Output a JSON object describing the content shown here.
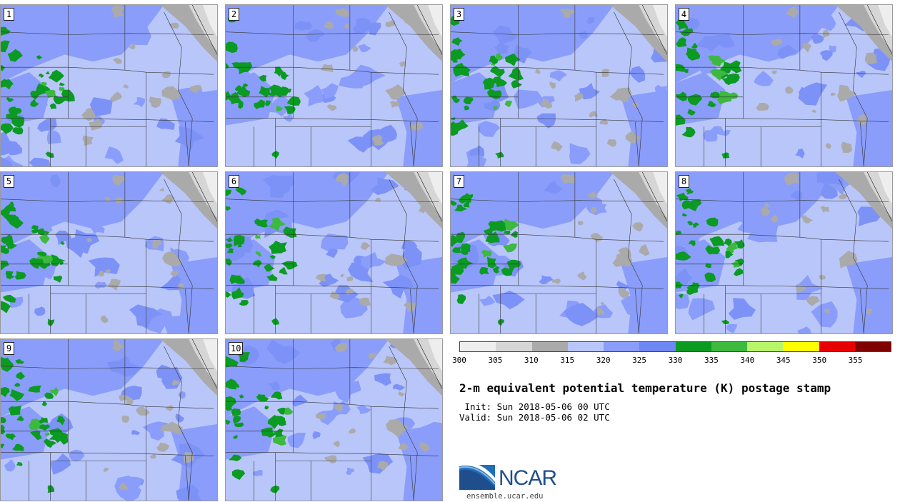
{
  "panels": [
    {
      "label": "1"
    },
    {
      "label": "2"
    },
    {
      "label": "3"
    },
    {
      "label": "4"
    },
    {
      "label": "5"
    },
    {
      "label": "6"
    },
    {
      "label": "7"
    },
    {
      "label": "8"
    },
    {
      "label": "9"
    },
    {
      "label": "10"
    }
  ],
  "legend": {
    "colors": [
      "#eeeeee",
      "#d6d6d6",
      "#aaaaaa",
      "#b9c6fa",
      "#8a9dfa",
      "#6f86f5",
      "#0b9a22",
      "#3cb93e",
      "#b7f56a",
      "#ffff00",
      "#e60000",
      "#800000"
    ],
    "ticks": [
      "300",
      "305",
      "310",
      "315",
      "320",
      "325",
      "330",
      "335",
      "340",
      "345",
      "350",
      "355"
    ]
  },
  "title": "2-m equivalent potential temperature (K) postage stamp",
  "init_line": " Init: Sun 2018-05-06 00 UTC",
  "valid_line": "Valid: Sun 2018-05-06 02 UTC",
  "logo": {
    "text": "NCAR",
    "url": "ensemble.ucar.edu"
  }
}
